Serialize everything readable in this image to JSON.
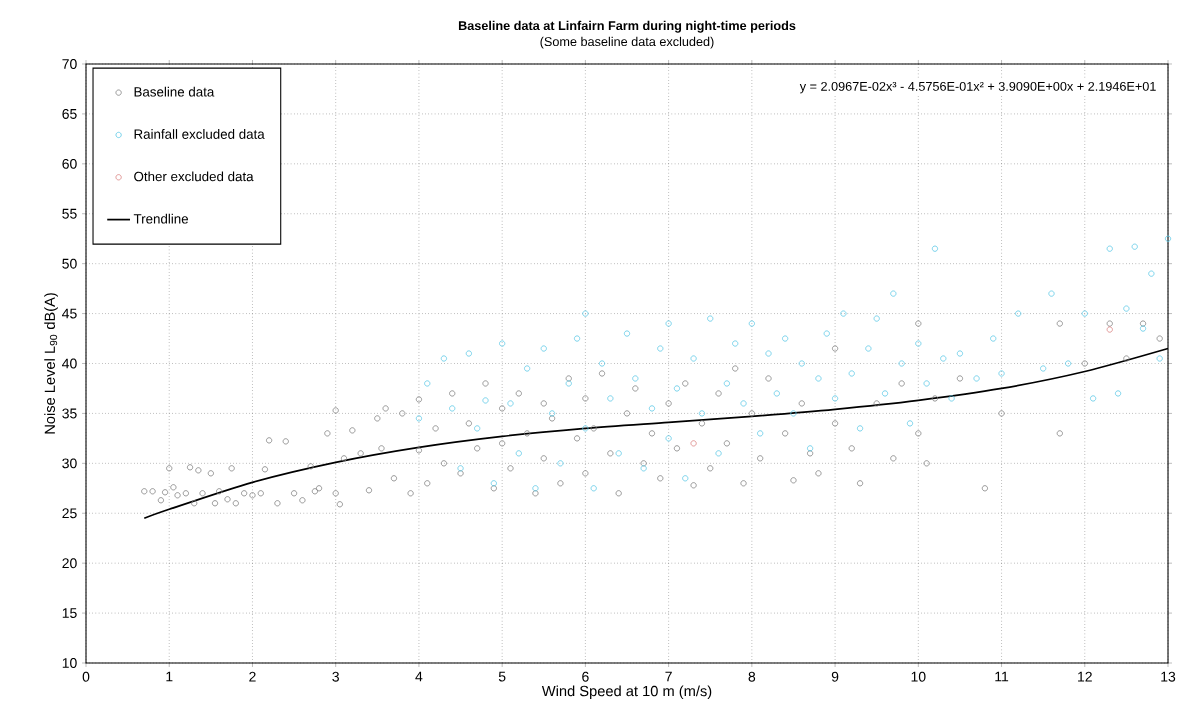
{
  "chart_data": {
    "type": "scatter",
    "title": "Baseline data at Linfairn Farm during night-time periods",
    "subtitle": "(Some baseline data excluded)",
    "xlabel": "Wind Speed at 10 m (m/s)",
    "ylabel": "Noise Level L$_{90}$ dB(A)",
    "xlim": [
      0,
      13
    ],
    "ylim": [
      10,
      70
    ],
    "xticks": [
      0,
      1,
      2,
      3,
      4,
      5,
      6,
      7,
      8,
      9,
      10,
      11,
      12,
      13
    ],
    "yticks": [
      10,
      15,
      20,
      25,
      30,
      35,
      40,
      45,
      50,
      55,
      60,
      65,
      70
    ],
    "grid": true,
    "legend": "top left",
    "marker": "circle",
    "annotations": [
      "y = 2.0967E-02x³ - 4.5756E-01x² + 3.9090E+00x + 2.1946E+01"
    ],
    "series": [
      {
        "name": "Baseline data",
        "color": "#7f7f7f",
        "x": [
          0.7,
          0.8,
          0.9,
          0.95,
          1.0,
          1.05,
          1.1,
          1.2,
          1.25,
          1.3,
          1.35,
          1.4,
          1.5,
          1.55,
          1.6,
          1.7,
          1.75,
          1.8,
          1.9,
          2.0,
          2.1,
          2.15,
          2.2,
          2.3,
          2.4,
          2.5,
          2.6,
          2.7,
          2.75,
          2.8,
          2.9,
          3.0,
          3.0,
          3.05,
          3.1,
          3.2,
          3.3,
          3.4,
          3.5,
          3.55,
          3.6,
          3.7,
          3.8,
          3.9,
          4.0,
          4.0,
          4.1,
          4.2,
          4.3,
          4.4,
          4.5,
          4.6,
          4.7,
          4.8,
          4.9,
          5.0,
          5.0,
          5.1,
          5.2,
          5.3,
          5.4,
          5.5,
          5.5,
          5.6,
          5.7,
          5.8,
          5.9,
          6.0,
          6.0,
          6.1,
          6.2,
          6.3,
          6.4,
          6.5,
          6.6,
          6.7,
          6.8,
          6.9,
          7.0,
          7.1,
          7.2,
          7.3,
          7.4,
          7.5,
          7.6,
          7.7,
          7.8,
          7.9,
          8.0,
          8.1,
          8.2,
          8.4,
          8.5,
          8.6,
          8.7,
          8.8,
          9.0,
          9.0,
          9.2,
          9.3,
          9.5,
          9.7,
          9.8,
          10.0,
          10.0,
          10.1,
          10.2,
          10.5,
          10.8,
          11.0,
          11.7,
          11.7,
          12.0,
          12.3,
          12.5,
          12.7,
          12.9
        ],
        "values": [
          27.2,
          27.2,
          26.3,
          27.1,
          29.5,
          27.6,
          26.8,
          27.0,
          29.6,
          26.0,
          29.3,
          27.0,
          29.0,
          26.0,
          27.2,
          26.4,
          29.5,
          26.0,
          27.0,
          26.8,
          27.0,
          29.4,
          32.3,
          26.0,
          32.2,
          27.0,
          26.3,
          29.7,
          27.2,
          27.5,
          33.0,
          35.3,
          27.0,
          25.9,
          30.5,
          33.3,
          31.0,
          27.3,
          34.5,
          31.5,
          35.5,
          28.5,
          35.0,
          27.0,
          31.3,
          36.4,
          28.0,
          33.5,
          30.0,
          37.0,
          29.0,
          34.0,
          31.5,
          38.0,
          27.5,
          35.5,
          32.0,
          29.5,
          37.0,
          33.0,
          27.0,
          36.0,
          30.5,
          34.5,
          28.0,
          38.5,
          32.5,
          36.5,
          29.0,
          33.5,
          39.0,
          31.0,
          27.0,
          35.0,
          37.5,
          30.0,
          33.0,
          28.5,
          36.0,
          31.5,
          38.0,
          27.8,
          34.0,
          29.5,
          37.0,
          32.0,
          39.5,
          28.0,
          35.0,
          30.5,
          38.5,
          33.0,
          28.3,
          36.0,
          31.0,
          29.0,
          41.5,
          34.0,
          31.5,
          28.0,
          36.0,
          30.5,
          38.0,
          44.0,
          33.0,
          30.0,
          36.5,
          38.5,
          27.5,
          35.0,
          33.0,
          44.0,
          40.0,
          44.0,
          40.5,
          44.0,
          42.5
        ]
      },
      {
        "name": "Rainfall excluded data",
        "color": "#5bc8e6",
        "x": [
          4.0,
          4.1,
          4.3,
          4.4,
          4.5,
          4.6,
          4.7,
          4.8,
          4.9,
          5.0,
          5.1,
          5.2,
          5.3,
          5.4,
          5.5,
          5.6,
          5.7,
          5.8,
          5.9,
          6.0,
          6.0,
          6.1,
          6.2,
          6.3,
          6.4,
          6.5,
          6.6,
          6.7,
          6.8,
          6.9,
          7.0,
          7.0,
          7.1,
          7.2,
          7.3,
          7.4,
          7.5,
          7.6,
          7.7,
          7.8,
          7.9,
          8.0,
          8.1,
          8.2,
          8.3,
          8.4,
          8.5,
          8.6,
          8.7,
          8.8,
          8.9,
          9.0,
          9.1,
          9.2,
          9.3,
          9.4,
          9.5,
          9.6,
          9.7,
          9.8,
          9.9,
          10.0,
          10.1,
          10.2,
          10.3,
          10.4,
          10.5,
          10.7,
          10.9,
          11.0,
          11.2,
          11.5,
          11.6,
          11.8,
          12.0,
          12.1,
          12.3,
          12.4,
          12.5,
          12.6,
          12.7,
          12.8,
          12.9,
          13.0
        ],
        "values": [
          34.5,
          38.0,
          40.5,
          35.5,
          29.5,
          41.0,
          33.5,
          36.3,
          28.0,
          42.0,
          36.0,
          31.0,
          39.5,
          27.5,
          41.5,
          35.0,
          30.0,
          38.0,
          42.5,
          45.0,
          33.5,
          27.5,
          40.0,
          36.5,
          31.0,
          43.0,
          38.5,
          29.5,
          35.5,
          41.5,
          44.0,
          32.5,
          37.5,
          28.5,
          40.5,
          35.0,
          44.5,
          31.0,
          38.0,
          42.0,
          36.0,
          44.0,
          33.0,
          41.0,
          37.0,
          42.5,
          35.0,
          40.0,
          31.5,
          38.5,
          43.0,
          36.5,
          45.0,
          39.0,
          33.5,
          41.5,
          44.5,
          37.0,
          47.0,
          40.0,
          34.0,
          42.0,
          38.0,
          51.5,
          40.5,
          36.5,
          41.0,
          38.5,
          42.5,
          39.0,
          45.0,
          39.5,
          47.0,
          40.0,
          45.0,
          36.5,
          51.5,
          37.0,
          45.5,
          51.7,
          43.5,
          49.0,
          40.5,
          52.5
        ]
      },
      {
        "name": "Other excluded data",
        "color": "#d9807f",
        "x": [
          7.3,
          12.3
        ],
        "values": [
          32.0,
          43.4
        ]
      },
      {
        "name": "Trendline",
        "type": "line",
        "marker": "none",
        "color": "#000000",
        "x": [
          0.7,
          1,
          2,
          3,
          4,
          5,
          6,
          7,
          8,
          9,
          10,
          11,
          12,
          13
        ],
        "values": [
          24.5,
          25.4,
          28.1,
          30.1,
          31.6,
          32.7,
          33.5,
          34.1,
          34.7,
          35.4,
          36.3,
          37.5,
          39.2,
          41.5
        ]
      }
    ]
  }
}
